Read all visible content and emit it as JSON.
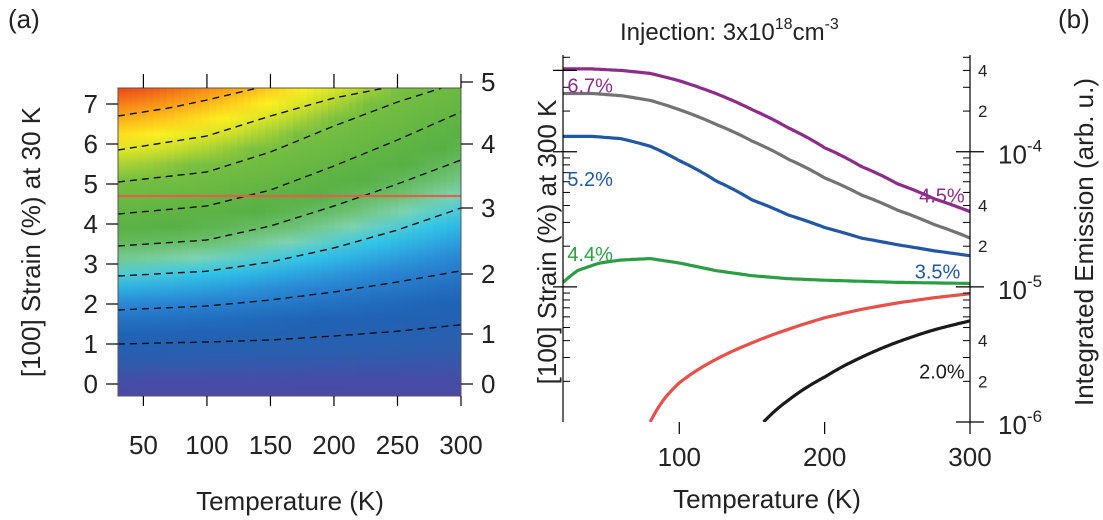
{
  "chart_data": [
    {
      "panel_label": "(a)",
      "type": "heatmap",
      "xlabel": "Temperature (K)",
      "ylabel": "[100] Strain (%) at 30 K",
      "ylabel_right": "[100] Strain (%) at 300 K",
      "xlim": [
        30,
        300
      ],
      "ylim": [
        -0.3,
        7.4
      ],
      "xticks": [
        "50",
        "100",
        "150",
        "200",
        "250",
        "300"
      ],
      "xtick_values": [
        50,
        100,
        150,
        200,
        250,
        300
      ],
      "yticks": [
        "0",
        "1",
        "2",
        "3",
        "4",
        "5",
        "6",
        "7"
      ],
      "yticks_right": [
        "0",
        "1",
        "2",
        "3",
        "4",
        "5"
      ],
      "yticks_right_positions": [
        0,
        1.25,
        2.75,
        4.4,
        6.0,
        7.55
      ],
      "colorscale_stops": [
        {
          "v": 0.0,
          "c": "#4a4aa6"
        },
        {
          "v": 0.6,
          "c": "#2a5fae"
        },
        {
          "v": 1.3,
          "c": "#1f63b5"
        },
        {
          "v": 2.0,
          "c": "#2a86d4"
        },
        {
          "v": 2.6,
          "c": "#2fc6ea"
        },
        {
          "v": 3.0,
          "c": "#7fd3b0"
        },
        {
          "v": 3.3,
          "c": "#6cc070"
        },
        {
          "v": 3.8,
          "c": "#57b044"
        },
        {
          "v": 5.2,
          "c": "#79c041"
        },
        {
          "v": 5.7,
          "c": "#cfe02a"
        },
        {
          "v": 6.1,
          "c": "#fdf020"
        },
        {
          "v": 6.6,
          "c": "#fdb21a"
        },
        {
          "v": 7.1,
          "c": "#f47216"
        },
        {
          "v": 7.6,
          "c": "#e6261f"
        }
      ],
      "contours": [
        {
          "x": [
            30,
            100,
            150,
            200,
            250,
            300
          ],
          "y": [
            1.0,
            1.05,
            1.1,
            1.2,
            1.32,
            1.48
          ]
        },
        {
          "x": [
            30,
            100,
            150,
            200,
            250,
            300
          ],
          "y": [
            1.85,
            1.95,
            2.1,
            2.3,
            2.55,
            2.83
          ]
        },
        {
          "x": [
            30,
            100,
            150,
            200,
            250,
            300
          ],
          "y": [
            2.7,
            2.82,
            3.05,
            3.4,
            3.85,
            4.4
          ]
        },
        {
          "x": [
            30,
            100,
            150,
            200,
            250,
            300
          ],
          "y": [
            3.45,
            3.6,
            3.95,
            4.45,
            5.0,
            5.6
          ]
        },
        {
          "x": [
            30,
            100,
            150,
            200,
            250,
            300
          ],
          "y": [
            4.25,
            4.45,
            4.85,
            5.45,
            6.1,
            6.8
          ]
        },
        {
          "x": [
            30,
            100,
            150,
            200,
            250,
            285
          ],
          "y": [
            5.05,
            5.3,
            5.8,
            6.45,
            7.05,
            7.4
          ]
        },
        {
          "x": [
            30,
            100,
            150,
            200,
            240
          ],
          "y": [
            5.85,
            6.2,
            6.7,
            7.15,
            7.4
          ]
        },
        {
          "x": [
            30,
            70,
            100,
            140
          ],
          "y": [
            6.7,
            6.9,
            7.1,
            7.4
          ]
        }
      ],
      "reference_line": {
        "y": 4.7,
        "color": "#e0604a"
      }
    },
    {
      "panel_label": "(b)",
      "type": "line",
      "title_prefix": "Injection: 3x10",
      "title_exp1": "18",
      "title_unit": "cm",
      "title_exp2": "-3",
      "xlabel": "Temperature (K)",
      "ylabel_left": "[100] Strain (%) at 300 K",
      "ylabel_right": "Integrated Emission (arb. u.)",
      "xlim": [
        20,
        300
      ],
      "xticks": [
        "100",
        "200",
        "300"
      ],
      "xtick_values": [
        100,
        200,
        300
      ],
      "yscale": "log",
      "ylim": [
        1e-06,
        0.00052
      ],
      "right_major_ticks": [
        {
          "value": 1e-06,
          "base": "10",
          "exp": "-6"
        },
        {
          "value": 1e-05,
          "base": "10",
          "exp": "-5"
        },
        {
          "value": 0.0001,
          "base": "10",
          "exp": "-4"
        }
      ],
      "right_minor_labels": [
        {
          "value": 2e-06,
          "label": "2"
        },
        {
          "value": 4e-06,
          "label": "4"
        },
        {
          "value": 2e-05,
          "label": "2"
        },
        {
          "value": 4e-05,
          "label": "4"
        },
        {
          "value": 0.0002,
          "label": "2"
        },
        {
          "value": 0.0004,
          "label": "4"
        }
      ],
      "series": [
        {
          "color": "#8e2c8c",
          "x": [
            20,
            40,
            60,
            80,
            100,
            125,
            150,
            175,
            200,
            225,
            250,
            275,
            300
          ],
          "y": [
            0.00041,
            0.00041,
            0.0004,
            0.00038,
            0.000335,
            0.00027,
            0.000205,
            0.00015,
            0.000107,
            7.8e-05,
            5.8e-05,
            4.5e-05,
            3.6e-05
          ]
        },
        {
          "color": "#737373",
          "x": [
            20,
            40,
            60,
            80,
            100,
            125,
            150,
            175,
            200,
            225,
            250,
            275,
            300
          ],
          "y": [
            0.00027,
            0.00027,
            0.00026,
            0.00024,
            0.000205,
            0.00016,
            0.00012,
            8.8e-05,
            6.4e-05,
            4.8e-05,
            3.7e-05,
            2.9e-05,
            2.3e-05
          ]
        },
        {
          "color": "#2257a5",
          "x": [
            20,
            40,
            60,
            80,
            100,
            125,
            150,
            175,
            200,
            225,
            250,
            275,
            300
          ],
          "y": [
            0.00013,
            0.00013,
            0.000125,
            0.00011,
            8.6e-05,
            6.1e-05,
            4.4e-05,
            3.4e-05,
            2.75e-05,
            2.3e-05,
            2.05e-05,
            1.85e-05,
            1.7e-05
          ]
        },
        {
          "color": "#2b9e44",
          "x": [
            20,
            30,
            45,
            60,
            80,
            100,
            125,
            150,
            175,
            200,
            225,
            250,
            275,
            300
          ],
          "y": [
            1.08e-05,
            1.32e-05,
            1.5e-05,
            1.58e-05,
            1.62e-05,
            1.5e-05,
            1.32e-05,
            1.21e-05,
            1.15e-05,
            1.12e-05,
            1.1e-05,
            1.08e-05,
            1.07e-05,
            1.06e-05
          ]
        },
        {
          "color": "#e8504a",
          "x": [
            80,
            90,
            100,
            125,
            150,
            175,
            200,
            225,
            250,
            275,
            300
          ],
          "y": [
            1e-06,
            1.5e-06,
            1.95e-06,
            2.9e-06,
            3.85e-06,
            4.85e-06,
            5.9e-06,
            6.8e-06,
            7.6e-06,
            8.3e-06,
            8.9e-06
          ]
        },
        {
          "color": "#1a1a1a",
          "x": [
            158,
            175,
            200,
            225,
            250,
            275,
            300
          ],
          "y": [
            1e-06,
            1.45e-06,
            2.15e-06,
            3e-06,
            3.9e-06,
            4.8e-06,
            5.6e-06
          ]
        }
      ],
      "annotations": [
        {
          "text": "6.7%",
          "color": "#8e2c8c",
          "x": 23,
          "y": 0.000275
        },
        {
          "text": "4.5%",
          "color": "#8e2c8c",
          "x": 265,
          "y": 4.2e-05
        },
        {
          "text": "5.2%",
          "color": "#2257a5",
          "x": 23,
          "y": 5.6e-05
        },
        {
          "text": "4.4%",
          "color": "#2b9e44",
          "x": 23,
          "y": 1.55e-05
        },
        {
          "text": "3.5%",
          "color": "#2257a5",
          "x": 262,
          "y": 1.15e-05
        },
        {
          "text": "2.0%",
          "color": "#1a1a1a",
          "x": 265,
          "y": 2.1e-06
        }
      ],
      "left_tick_labels": [
        "0",
        "1",
        "2",
        "3",
        "4",
        "5"
      ]
    }
  ]
}
